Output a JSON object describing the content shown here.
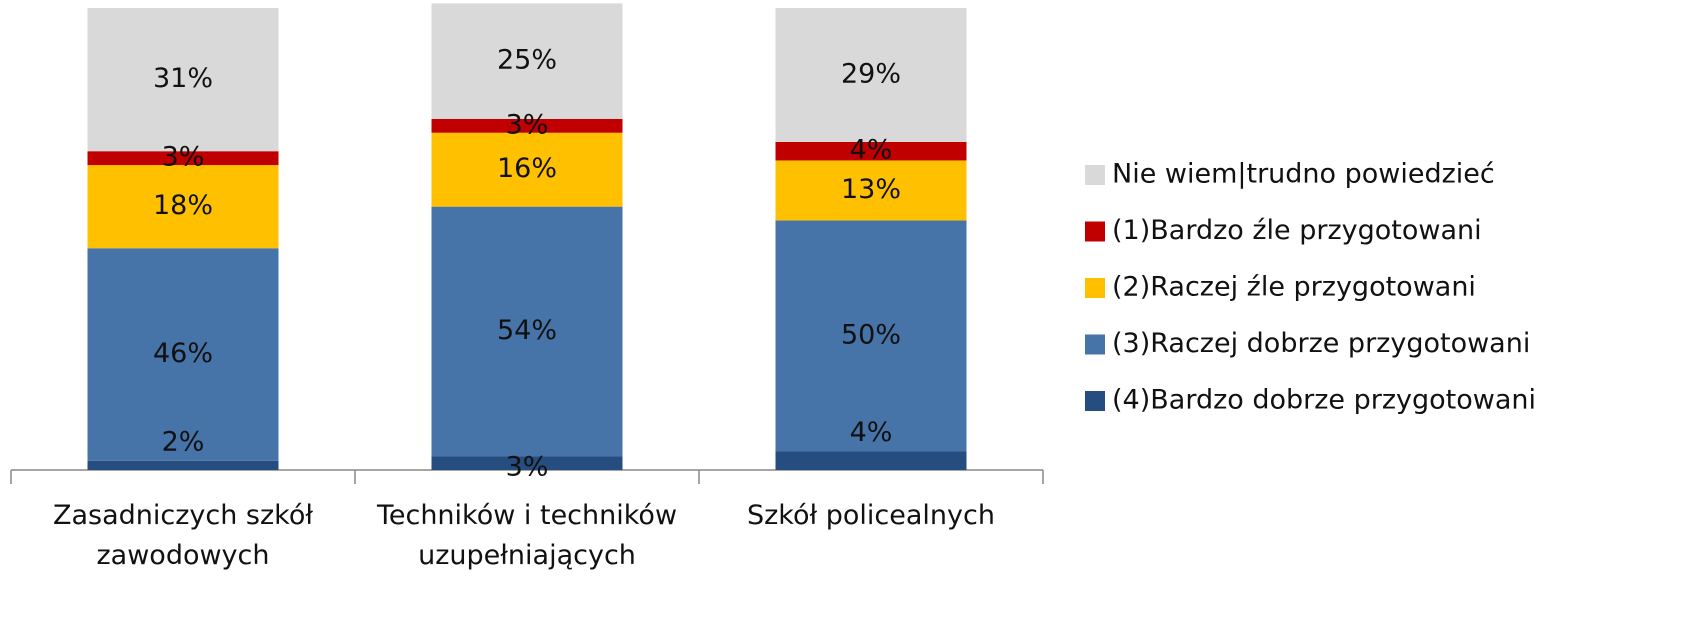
{
  "chart_data": {
    "type": "stacked_bar",
    "categories": [
      "Zasadniczych szkół zawodowych",
      "Techników i techników uzupełniających",
      "Szkół policealnych"
    ],
    "ylim": [
      0,
      100
    ],
    "series": [
      {
        "name": "(4)Bardzo dobrze przygotowani",
        "color": "#254d80",
        "values": [
          2,
          3,
          4
        ],
        "value_labels": [
          "2%",
          "3%",
          "4%"
        ]
      },
      {
        "name": "(3)Raczej dobrze przygotowani",
        "color": "#4673a8",
        "values": [
          46,
          54,
          50
        ],
        "value_labels": [
          "46%",
          "54%",
          "50%"
        ]
      },
      {
        "name": "(2)Raczej źle przygotowani",
        "color": "#ffc000",
        "values": [
          18,
          16,
          13
        ],
        "value_labels": [
          "18%",
          "16%",
          "13%"
        ]
      },
      {
        "name": "(1)Bardzo źle przygotowani",
        "color": "#c00000",
        "values": [
          3,
          3,
          4
        ],
        "value_labels": [
          "3%",
          "3%",
          "4%"
        ]
      },
      {
        "name": "Nie wiem|trudno powiedzieć",
        "color": "#d9d9d9",
        "values": [
          31,
          25,
          29
        ],
        "value_labels": [
          "31%",
          "25%",
          "29%"
        ]
      }
    ],
    "legend": "right"
  }
}
